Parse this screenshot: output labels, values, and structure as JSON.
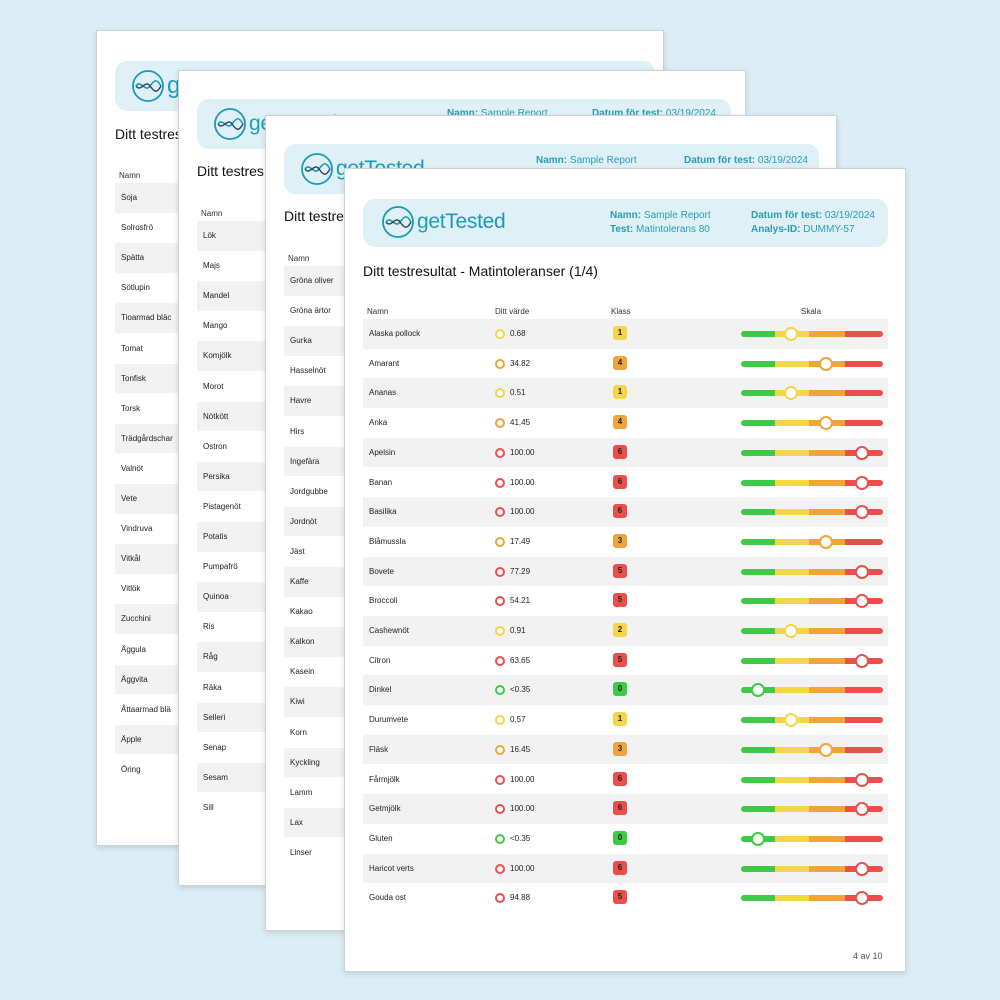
{
  "brand": {
    "name_get": "get",
    "name_tested": "Tested"
  },
  "labels": {
    "name_key": "Namn:",
    "date_key": "Datum för test:",
    "test_key": "Test:",
    "analysis_key": "Analys-ID:",
    "col_name": "Namn",
    "col_value": "Ditt värde",
    "col_class": "Klass",
    "col_scale": "Skala"
  },
  "report": {
    "name": "Sample Report",
    "date": "03/19/2024",
    "test": "Matintolerans 80",
    "analysis_id": "DUMMY-57",
    "title": "Ditt testresultat - Matintoleranser (1/4)",
    "title_short": "Ditt testres",
    "footer": "4 av 10"
  },
  "colors": {
    "green": "#3fc947",
    "yellow": "#f5d54a",
    "orange": "#f0a43a",
    "red": "#ec4f4b",
    "accent": "#1a9ab5",
    "header_bg": "#dff0f6"
  },
  "back_pages": {
    "page1": [
      "Soja",
      "Solrosfrö",
      "Spätta",
      "Sötlupin",
      "Tioarmad bläc",
      "Tomat",
      "Tonfisk",
      "Torsk",
      "Trädgårdschar",
      "Valnöt",
      "Vete",
      "Vindruva",
      "Vitkål",
      "Vitlök",
      "Zucchini",
      "Äggula",
      "Äggvita",
      "Åttaarmad blä",
      "Äpple",
      "Öring"
    ],
    "page2": [
      "Lök",
      "Majs",
      "Mandel",
      "Mango",
      "Komjölk",
      "Morot",
      "Nötkött",
      "Ostron",
      "Persika",
      "Pistagenöt",
      "Potatis",
      "Pumpafrö",
      "Quinoa",
      "Ris",
      "Råg",
      "Räka",
      "Selleri",
      "Senap",
      "Sesam",
      "Sill"
    ],
    "page3": [
      "Gröna oliver",
      "Gröna ärtor",
      "Gurka",
      "Hasselnöt",
      "Havre",
      "Hirs",
      "Ingefära",
      "Jordgubbe",
      "Jordnöt",
      "Jäst",
      "Kaffe",
      "Kakao",
      "Kalkon",
      "Kasein",
      "Kiwi",
      "Korn",
      "Kyckling",
      "Lamm",
      "Lax",
      "Linser"
    ]
  },
  "results": [
    {
      "name": "Alaska pollock",
      "value": "0.68",
      "class": "1",
      "level": 1
    },
    {
      "name": "Amarant",
      "value": "34.82",
      "class": "4",
      "level": 4
    },
    {
      "name": "Ananas",
      "value": "0.51",
      "class": "1",
      "level": 1
    },
    {
      "name": "Anka",
      "value": "41.45",
      "class": "4",
      "level": 4
    },
    {
      "name": "Apelsin",
      "value": "100.00",
      "class": "6",
      "level": 6
    },
    {
      "name": "Banan",
      "value": "100.00",
      "class": "6",
      "level": 6
    },
    {
      "name": "Basilika",
      "value": "100.00",
      "class": "6",
      "level": 6
    },
    {
      "name": "Blåmussla",
      "value": "17.49",
      "class": "3",
      "level": 3
    },
    {
      "name": "Bovete",
      "value": "77.29",
      "class": "5",
      "level": 5
    },
    {
      "name": "Broccoli",
      "value": "54.21",
      "class": "5",
      "level": 5
    },
    {
      "name": "Cashewnöt",
      "value": "0.91",
      "class": "2",
      "level": 2
    },
    {
      "name": "Citron",
      "value": "63.65",
      "class": "5",
      "level": 5
    },
    {
      "name": "Dinkel",
      "value": "<0.35",
      "class": "0",
      "level": 0
    },
    {
      "name": "Durumvete",
      "value": "0.57",
      "class": "1",
      "level": 1
    },
    {
      "name": "Fläsk",
      "value": "16.45",
      "class": "3",
      "level": 3
    },
    {
      "name": "Fårmjölk",
      "value": "100.00",
      "class": "6",
      "level": 6
    },
    {
      "name": "Getmjölk",
      "value": "100.00",
      "class": "6",
      "level": 6
    },
    {
      "name": "Gluten",
      "value": "<0.35",
      "class": "0",
      "level": 0
    },
    {
      "name": "Haricot verts",
      "value": "100.00",
      "class": "6",
      "level": 6
    },
    {
      "name": "Gouda ost",
      "value": "94.88",
      "class": "5",
      "level": 5
    }
  ]
}
